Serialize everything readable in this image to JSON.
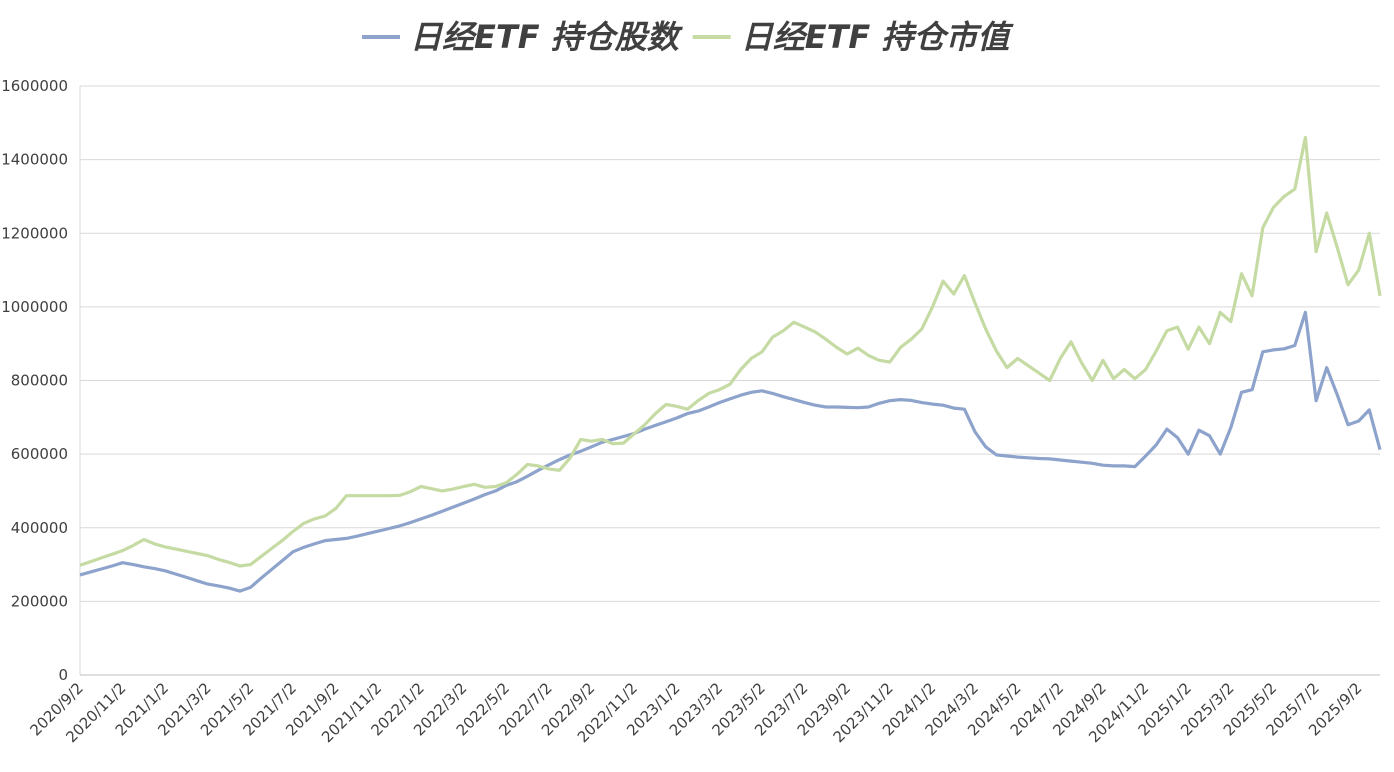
{
  "chart_data": {
    "type": "line",
    "categories": [
      "2020/9/2",
      null,
      null,
      null,
      "2020/11/2",
      null,
      null,
      null,
      "2021/1/2",
      null,
      null,
      null,
      "2021/3/2",
      null,
      null,
      null,
      "2021/5/2",
      null,
      null,
      null,
      "2021/7/2",
      null,
      null,
      null,
      "2021/9/2",
      null,
      null,
      null,
      "2021/11/2",
      null,
      null,
      null,
      "2022/1/2",
      null,
      null,
      null,
      "2022/3/2",
      null,
      null,
      null,
      "2022/5/2",
      null,
      null,
      null,
      "2022/7/2",
      null,
      null,
      null,
      "2022/9/2",
      null,
      null,
      null,
      "2022/11/2",
      null,
      null,
      null,
      "2023/1/2",
      null,
      null,
      null,
      "2023/3/2",
      null,
      null,
      null,
      "2023/5/2",
      null,
      null,
      null,
      "2023/7/2",
      null,
      null,
      null,
      "2023/9/2",
      null,
      null,
      null,
      "2023/11/2",
      null,
      null,
      null,
      "2024/1/2",
      null,
      null,
      null,
      "2024/3/2",
      null,
      null,
      null,
      "2024/5/2",
      null,
      null,
      null,
      "2024/7/2",
      null,
      null,
      null,
      "2024/9/2",
      null,
      null,
      null,
      "2024/11/2",
      null,
      null,
      null,
      "2025/1/2",
      null,
      null,
      null,
      "2025/3/2",
      null,
      null,
      null,
      "2025/5/2",
      null,
      null,
      null,
      "2025/7/2",
      null,
      null,
      null,
      "2025/9/2",
      null,
      null
    ],
    "series": [
      {
        "name": "日经ETF 持仓股数",
        "color": "#8da3cc",
        "values": [
          272000,
          280000,
          288000,
          296000,
          305000,
          300000,
          294000,
          289000,
          283000,
          274000,
          265000,
          256000,
          247000,
          242000,
          236000,
          228000,
          238000,
          263000,
          287000,
          311000,
          335000,
          347000,
          356000,
          365000,
          368000,
          371000,
          377000,
          384000,
          391000,
          398000,
          405000,
          414000,
          424000,
          434000,
          445000,
          456000,
          467000,
          478000,
          490000,
          500000,
          515000,
          525000,
          540000,
          556000,
          571000,
          585000,
          598000,
          608000,
          620000,
          632000,
          640000,
          648000,
          656000,
          668000,
          678000,
          688000,
          698000,
          710000,
          717000,
          728000,
          740000,
          750000,
          760000,
          768000,
          772000,
          765000,
          756000,
          748000,
          740000,
          733000,
          728000,
          728000,
          727000,
          726000,
          728000,
          738000,
          745000,
          748000,
          746000,
          740000,
          736000,
          733000,
          725000,
          722000,
          660000,
          620000,
          598000,
          595000,
          592000,
          590000,
          588000,
          587000,
          584000,
          581000,
          578000,
          575000,
          570000,
          568000,
          568000,
          566000,
          595000,
          625000,
          668000,
          645000,
          600000,
          665000,
          650000,
          600000,
          672000,
          768000,
          775000,
          878000,
          883000,
          886000,
          895000,
          985000,
          745000,
          835000,
          760000,
          680000,
          690000,
          720000,
          612000
        ]
      },
      {
        "name": "日经ETF 持仓市值",
        "color": "#c5dba3",
        "values": [
          298000,
          308000,
          318000,
          328000,
          338000,
          352000,
          368000,
          356000,
          348000,
          342000,
          336000,
          330000,
          324000,
          314000,
          306000,
          296000,
          300000,
          322000,
          344000,
          366000,
          390000,
          412000,
          424000,
          432000,
          452000,
          487000,
          487000,
          487000,
          487000,
          487000,
          488000,
          498000,
          512000,
          506000,
          500000,
          505000,
          512000,
          518000,
          510000,
          512000,
          522000,
          545000,
          572000,
          568000,
          560000,
          556000,
          590000,
          640000,
          635000,
          640000,
          628000,
          630000,
          655000,
          680000,
          710000,
          735000,
          730000,
          722000,
          745000,
          765000,
          775000,
          790000,
          830000,
          860000,
          878000,
          918000,
          935000,
          958000,
          945000,
          932000,
          912000,
          890000,
          872000,
          888000,
          868000,
          855000,
          850000,
          890000,
          912000,
          940000,
          1000000,
          1070000,
          1035000,
          1085000,
          1010000,
          940000,
          880000,
          835000,
          860000,
          840000,
          820000,
          800000,
          860000,
          905000,
          848000,
          800000,
          855000,
          805000,
          830000,
          805000,
          830000,
          880000,
          935000,
          945000,
          885000,
          945000,
          900000,
          985000,
          960000,
          1090000,
          1030000,
          1215000,
          1270000,
          1300000,
          1320000,
          1460000,
          1150000,
          1255000,
          1160000,
          1060000,
          1100000,
          1200000,
          1030000
        ]
      }
    ],
    "ylim": [
      0,
      1600000
    ],
    "yticks": [
      0,
      200000,
      400000,
      600000,
      800000,
      1000000,
      1200000,
      1400000,
      1600000
    ],
    "grid": true,
    "legend": "top"
  }
}
